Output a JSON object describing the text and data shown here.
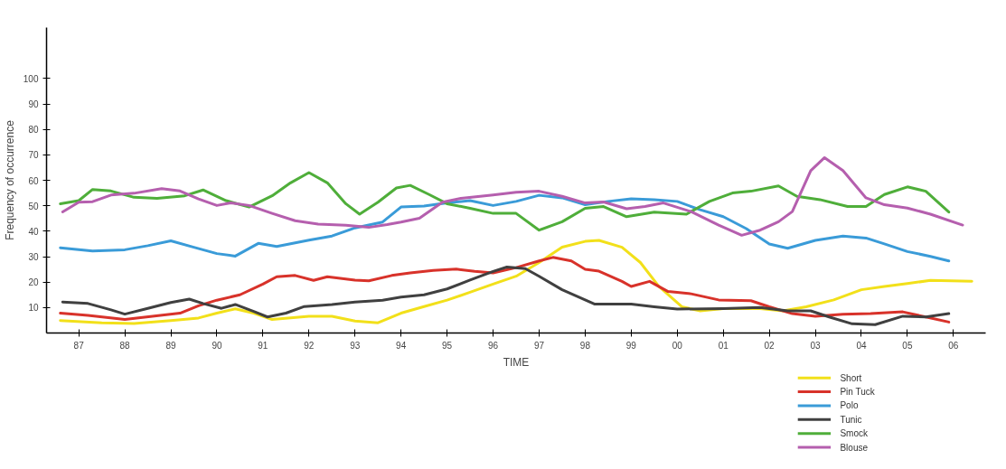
{
  "chart_data": {
    "type": "line",
    "xlabel": "TIME",
    "ylabel": "Frequency of occurrence",
    "xlim": [
      1986.3,
      2006.7
    ],
    "ylim": [
      0,
      120
    ],
    "xticks": [
      {
        "value": 1987,
        "label": "87"
      },
      {
        "value": 1988,
        "label": "88"
      },
      {
        "value": 1989,
        "label": "89"
      },
      {
        "value": 1990,
        "label": "90"
      },
      {
        "value": 1991,
        "label": "91"
      },
      {
        "value": 1992,
        "label": "92"
      },
      {
        "value": 1993,
        "label": "93"
      },
      {
        "value": 1994,
        "label": "94"
      },
      {
        "value": 1995,
        "label": "95"
      },
      {
        "value": 1996,
        "label": "96"
      },
      {
        "value": 1997,
        "label": "97"
      },
      {
        "value": 1998,
        "label": "98"
      },
      {
        "value": 1999,
        "label": "99"
      },
      {
        "value": 2000,
        "label": "00"
      },
      {
        "value": 2001,
        "label": "01"
      },
      {
        "value": 2002,
        "label": "02"
      },
      {
        "value": 2003,
        "label": "03"
      },
      {
        "value": 2004,
        "label": "04"
      },
      {
        "value": 2005,
        "label": "05"
      },
      {
        "value": 2006,
        "label": "06"
      }
    ],
    "yticks": [
      10,
      20,
      30,
      40,
      50,
      60,
      70,
      80,
      90,
      100
    ],
    "legend": "bottom right",
    "line_style": "solid",
    "series": [
      {
        "name": "Short",
        "color": "#f2e01a",
        "x": [
          1986.6,
          1987.5,
          1988.2,
          1989.0,
          1989.6,
          1990.0,
          1990.4,
          1990.8,
          1991.2,
          1992.0,
          1992.5,
          1993.0,
          1993.5,
          1994.0,
          1994.5,
          1995.0,
          1995.5,
          1996.0,
          1996.5,
          1997.0,
          1997.5,
          1998.0,
          1998.3,
          1998.8,
          1999.2,
          1999.6,
          2000.1,
          2000.5,
          2001.0,
          2001.8,
          2002.3,
          2002.8,
          2003.4,
          2004.0,
          2004.5,
          2005.0,
          2005.5,
          2006.4
        ],
        "values": [
          4.9,
          4.0,
          3.7,
          4.9,
          5.9,
          7.8,
          9.5,
          7.8,
          5.3,
          6.6,
          6.6,
          4.7,
          4.0,
          7.8,
          10.4,
          12.9,
          16.0,
          19.2,
          22.3,
          27.7,
          33.7,
          36.0,
          36.4,
          33.7,
          27.7,
          18.3,
          10.3,
          8.7,
          9.6,
          9.6,
          8.7,
          10.3,
          13.0,
          17.0,
          18.3,
          19.4,
          20.7,
          20.3
        ]
      },
      {
        "name": "Pin Tuck",
        "color": "#d8322a",
        "x": [
          1986.6,
          1987.2,
          1988.0,
          1988.6,
          1989.2,
          1989.6,
          1990.0,
          1990.5,
          1991.0,
          1991.3,
          1991.7,
          1992.1,
          1992.4,
          1993.0,
          1993.3,
          1993.8,
          1994.2,
          1994.7,
          1995.2,
          1995.6,
          1996.0,
          1996.5,
          1997.0,
          1997.3,
          1997.7,
          1998.0,
          1998.3,
          1998.8,
          1999.0,
          1999.4,
          1999.8,
          2000.3,
          2000.9,
          2001.6,
          2002.0,
          2002.5,
          2003.0,
          2003.6,
          2004.2,
          2004.9,
          2005.4,
          2005.9
        ],
        "values": [
          7.8,
          6.9,
          5.3,
          6.6,
          7.8,
          10.7,
          12.9,
          15.0,
          19.2,
          22.1,
          22.6,
          20.7,
          22.1,
          20.8,
          20.5,
          22.6,
          23.6,
          24.6,
          25.1,
          24.2,
          23.6,
          25.7,
          28.3,
          29.7,
          28.3,
          25.0,
          24.3,
          20.3,
          18.3,
          20.3,
          16.3,
          15.4,
          13.0,
          12.7,
          10.3,
          7.6,
          6.6,
          7.4,
          7.6,
          8.3,
          6.3,
          4.3
        ]
      },
      {
        "name": "Polo",
        "color": "#3a9bd8",
        "x": [
          1986.6,
          1987.3,
          1988.0,
          1988.5,
          1989.0,
          1989.5,
          1990.0,
          1990.4,
          1990.9,
          1991.3,
          1992.0,
          1992.5,
          1993.0,
          1993.6,
          1994.0,
          1994.5,
          1995.0,
          1995.5,
          1996.0,
          1996.5,
          1997.0,
          1997.5,
          1998.0,
          1998.5,
          1999.0,
          1999.5,
          2000.0,
          2000.5,
          2001.0,
          2001.5,
          2002.0,
          2002.4,
          2003.0,
          2003.6,
          2004.1,
          2004.5,
          2005.0,
          2005.5,
          2005.9
        ],
        "values": [
          33.5,
          32.2,
          32.7,
          34.3,
          36.2,
          33.7,
          31.2,
          30.2,
          35.2,
          34.0,
          36.5,
          38.1,
          41.3,
          43.6,
          49.5,
          49.9,
          51.1,
          52.0,
          50.1,
          51.7,
          54.1,
          53.1,
          50.4,
          51.7,
          52.7,
          52.4,
          51.7,
          48.4,
          45.7,
          41.0,
          35.0,
          33.3,
          36.4,
          38.1,
          37.3,
          35.0,
          32.0,
          30.1,
          28.3
        ]
      },
      {
        "name": "Tunic",
        "color": "#404040",
        "x": [
          1986.65,
          1987.2,
          1987.7,
          1988.0,
          1988.5,
          1989.0,
          1989.4,
          1989.7,
          1990.1,
          1990.4,
          1990.8,
          1991.1,
          1991.5,
          1991.9,
          1992.5,
          1993.0,
          1993.6,
          1994.0,
          1994.5,
          1995.0,
          1995.5,
          1996.0,
          1996.3,
          1996.7,
          1997.0,
          1997.5,
          1997.8,
          1998.2,
          1999.0,
          1999.5,
          2000.0,
          2001.0,
          2001.8,
          2002.4,
          2002.9,
          2003.3,
          2003.8,
          2004.3,
          2004.9,
          2005.4,
          2005.9
        ],
        "values": [
          12.2,
          11.6,
          9.1,
          7.4,
          9.7,
          12.0,
          13.3,
          11.6,
          9.7,
          11.2,
          8.5,
          6.3,
          7.8,
          10.4,
          11.2,
          12.2,
          12.9,
          14.1,
          15.0,
          17.3,
          20.8,
          24.2,
          25.9,
          25.3,
          22.3,
          17.0,
          14.6,
          11.4,
          11.4,
          10.3,
          9.4,
          9.6,
          10.0,
          8.7,
          8.7,
          6.3,
          3.6,
          3.3,
          6.6,
          6.3,
          7.6
        ]
      },
      {
        "name": "Smock",
        "color": "#4fae3a",
        "x": [
          1986.6,
          1987.0,
          1987.3,
          1987.7,
          1988.2,
          1988.7,
          1989.3,
          1989.7,
          1990.2,
          1990.7,
          1991.2,
          1991.6,
          1992.0,
          1992.4,
          1992.8,
          1993.1,
          1993.5,
          1993.9,
          1994.2,
          1994.6,
          1995.0,
          1995.5,
          1996.0,
          1996.5,
          1997.0,
          1997.5,
          1998.0,
          1998.4,
          1998.9,
          1999.5,
          2000.2,
          2000.7,
          2001.2,
          2001.6,
          2002.2,
          2002.6,
          2003.1,
          2003.7,
          2004.1,
          2004.5,
          2005.0,
          2005.4,
          2005.9
        ],
        "values": [
          50.8,
          52.0,
          56.4,
          55.8,
          53.3,
          52.9,
          53.9,
          56.2,
          52.0,
          49.5,
          53.9,
          59.0,
          63.0,
          59.0,
          50.8,
          46.7,
          51.4,
          57.0,
          58.0,
          54.5,
          50.8,
          49.0,
          47.0,
          47.0,
          40.4,
          43.7,
          49.0,
          49.7,
          45.7,
          47.5,
          46.7,
          51.7,
          55.0,
          55.7,
          57.8,
          53.7,
          52.4,
          49.7,
          49.7,
          54.4,
          57.4,
          55.7,
          47.5
        ]
      },
      {
        "name": "Blouse",
        "color": "#b55fae",
        "x": [
          1986.65,
          1987.0,
          1987.3,
          1987.7,
          1988.2,
          1988.8,
          1989.2,
          1989.6,
          1990.0,
          1990.3,
          1990.7,
          1991.2,
          1991.7,
          1992.2,
          1992.8,
          1993.3,
          1993.7,
          1994.0,
          1994.4,
          1994.9,
          1995.3,
          1996.0,
          1996.5,
          1997.0,
          1997.5,
          1998.0,
          1998.4,
          1998.9,
          1999.3,
          1999.7,
          2000.3,
          2000.9,
          2001.4,
          2001.8,
          2002.2,
          2002.5,
          2002.9,
          2003.2,
          2003.6,
          2004.1,
          2004.5,
          2005.0,
          2005.5,
          2006.2
        ],
        "values": [
          47.6,
          51.4,
          51.6,
          54.2,
          54.9,
          56.7,
          55.8,
          52.7,
          50.1,
          51.1,
          50.1,
          47.0,
          44.1,
          42.8,
          42.3,
          41.5,
          42.6,
          43.6,
          45.1,
          51.4,
          52.9,
          54.2,
          55.3,
          55.7,
          53.7,
          51.1,
          51.5,
          48.8,
          49.7,
          51.1,
          47.7,
          42.4,
          38.4,
          40.4,
          43.7,
          47.7,
          63.8,
          68.9,
          63.8,
          53.1,
          50.4,
          49.1,
          46.7,
          42.4
        ]
      }
    ]
  }
}
